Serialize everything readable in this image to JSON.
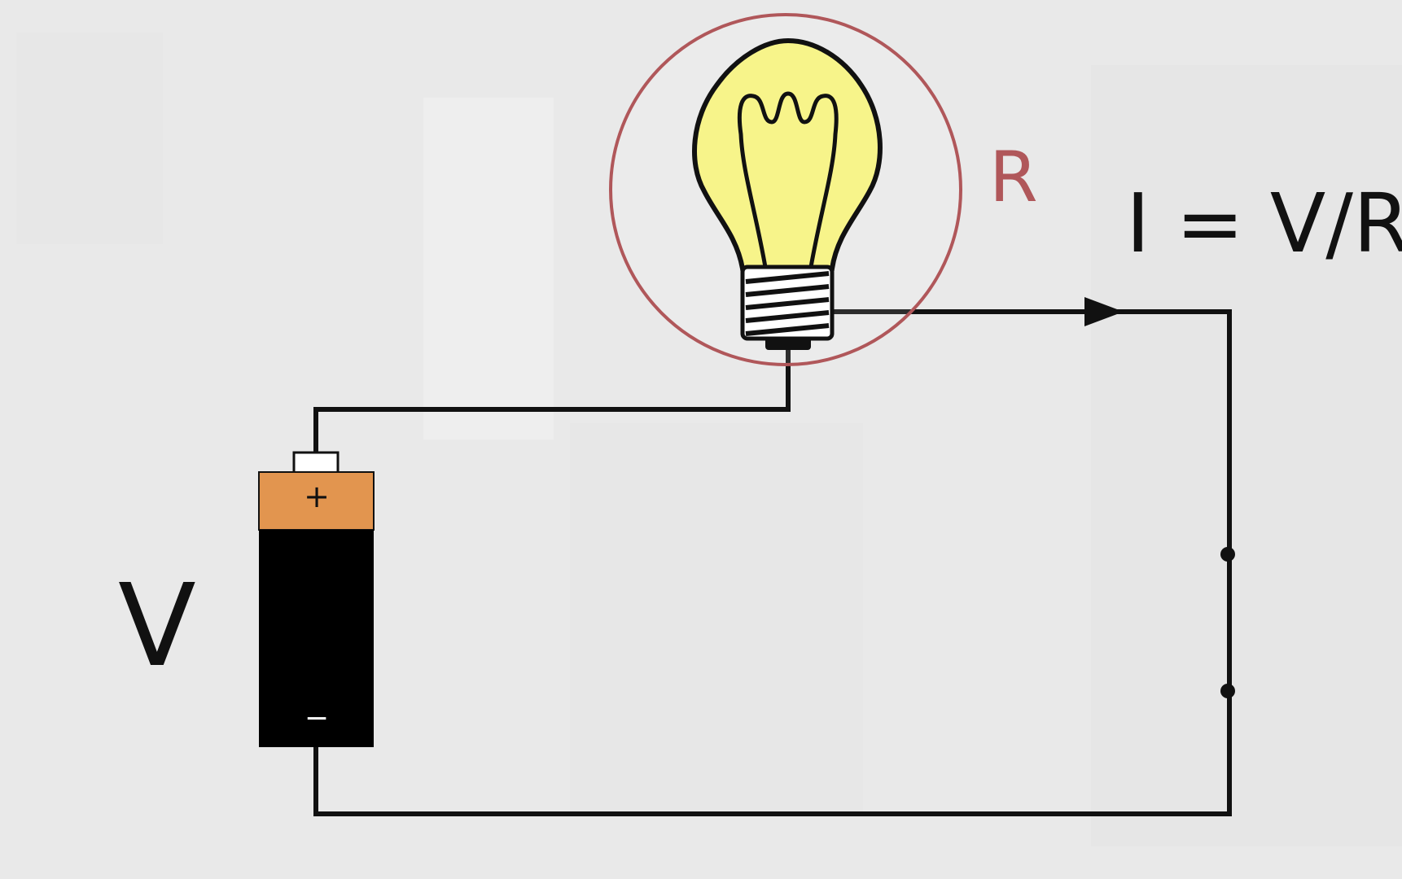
{
  "labels": {
    "voltage": "V",
    "resistance": "R",
    "equation": "I = V/R"
  },
  "battery": {
    "plus": "+",
    "minus": "−"
  },
  "colors": {
    "background": "#ececec",
    "wire": "#111111",
    "highlight_circle": "#b0575a",
    "resistance_label": "#b0575a",
    "bulb_glass": "#f7f48a",
    "battery_cap": "#e2954f",
    "battery_body": "#000000",
    "battery_terminal": "#ffffff"
  },
  "icons": [
    "light-bulb-icon",
    "battery-icon",
    "current-direction-arrow-icon"
  ]
}
